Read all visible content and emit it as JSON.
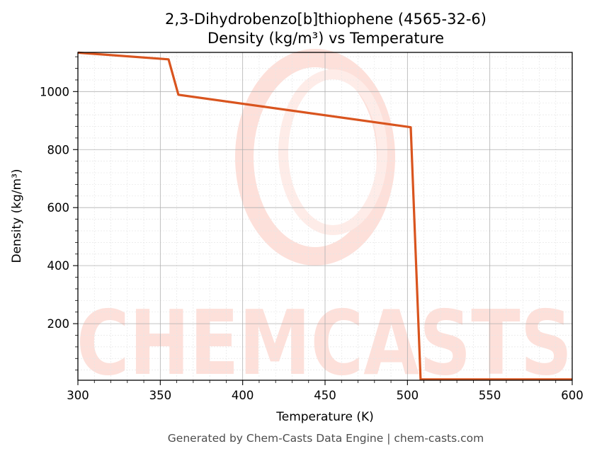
{
  "chart_data": {
    "type": "line",
    "title": "2,3-Dihydrobenzo[b]thiophene (4565-32-6)",
    "subtitle": "Density (kg/m³) vs Temperature",
    "xlabel": "Temperature (K)",
    "ylabel": "Density (kg/m³)",
    "xlim": [
      300,
      600
    ],
    "ylim": [
      5,
      1135
    ],
    "xticks": [
      300,
      350,
      400,
      450,
      500,
      550,
      600
    ],
    "yticks": [
      200,
      400,
      600,
      800,
      1000
    ],
    "grid": true,
    "series": [
      {
        "color": "#d9541e",
        "x": [
          300,
          355,
          361,
          502,
          508,
          600
        ],
        "y": [
          1134,
          1111,
          989,
          877,
          8,
          8
        ]
      }
    ]
  },
  "watermark": {
    "text": "CHEMCASTS",
    "color": "#fde0da"
  },
  "footer": "Generated by Chem-Casts Data Engine | chem-casts.com"
}
